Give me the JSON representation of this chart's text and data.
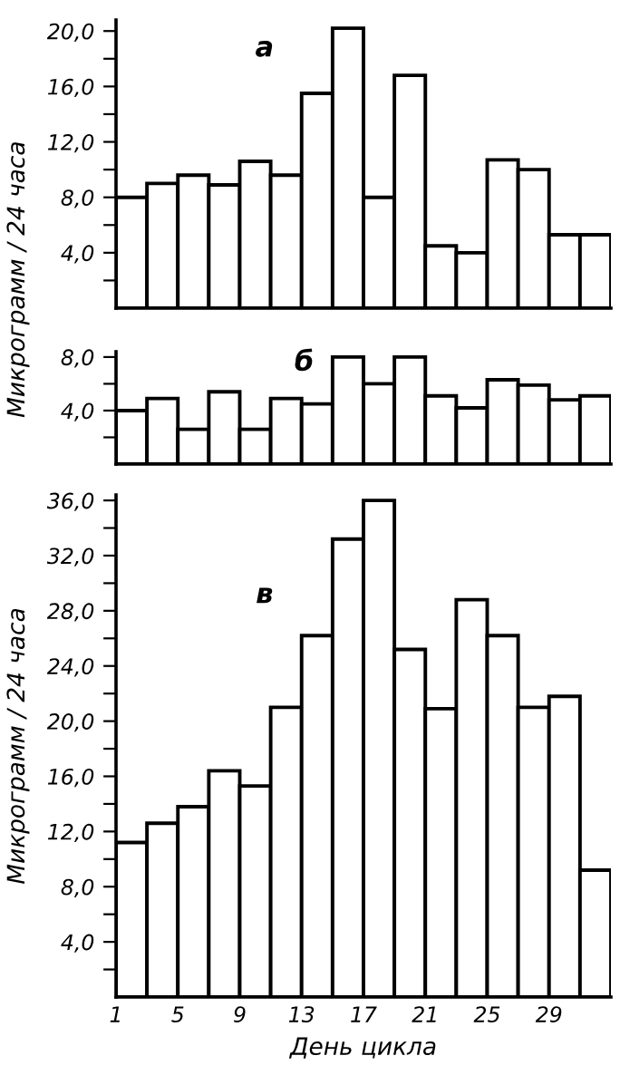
{
  "chart_data": [
    {
      "type": "histogram",
      "annotations": [
        "а"
      ],
      "ylabel": "Микрограмм / 24 часа",
      "tick_labels": "y",
      "xlim": [
        1,
        33
      ],
      "ylim": [
        0,
        20.8
      ],
      "bins": [
        1,
        3,
        5,
        7,
        9,
        11,
        13,
        15,
        17,
        19,
        21,
        23,
        25,
        27,
        29,
        31,
        33
      ],
      "values": [
        8.0,
        9.0,
        9.6,
        8.9,
        10.6,
        9.6,
        15.5,
        20.2,
        8.0,
        16.8,
        4.5,
        4.0,
        10.7,
        10.0,
        5.3,
        5.3
      ],
      "color": "#ffffff",
      "yticks": [
        {
          "value": 2,
          "label": null
        },
        {
          "value": 4,
          "label": "4,0"
        },
        {
          "value": 6,
          "label": null
        },
        {
          "value": 8,
          "label": "8,0"
        },
        {
          "value": 10,
          "label": null
        },
        {
          "value": 12,
          "label": "12,0"
        },
        {
          "value": 14,
          "label": null
        },
        {
          "value": 16,
          "label": "16,0"
        },
        {
          "value": 18,
          "label": null
        },
        {
          "value": 20,
          "label": "20,0"
        }
      ]
    },
    {
      "type": "histogram",
      "annotations": [
        "б"
      ],
      "tick_labels": "y",
      "xlim": [
        1,
        33
      ],
      "ylim": [
        0,
        8.4
      ],
      "bins": [
        1,
        3,
        5,
        7,
        9,
        11,
        13,
        15,
        17,
        19,
        21,
        23,
        25,
        27,
        29,
        31,
        33
      ],
      "values": [
        4.0,
        4.9,
        2.6,
        5.4,
        2.6,
        4.9,
        4.5,
        8.0,
        6.0,
        8.0,
        5.1,
        4.2,
        6.3,
        5.9,
        4.8,
        5.1
      ],
      "color": "#ffffff",
      "yticks": [
        {
          "value": 2,
          "label": null
        },
        {
          "value": 4,
          "label": "4,0"
        },
        {
          "value": 6,
          "label": null
        },
        {
          "value": 8,
          "label": "8,0"
        }
      ]
    },
    {
      "type": "histogram",
      "annotations": [
        "в"
      ],
      "ylabel": "Микрограмм / 24 часа",
      "xlabel": "День цикла",
      "xlim": [
        1,
        33
      ],
      "ylim": [
        0,
        36.4
      ],
      "bins": [
        1,
        3,
        5,
        7,
        9,
        11,
        13,
        15,
        17,
        19,
        21,
        23,
        25,
        27,
        29,
        31,
        33
      ],
      "values": [
        11.2,
        12.6,
        13.8,
        16.4,
        15.3,
        21.0,
        26.2,
        33.2,
        36.0,
        25.2,
        20.9,
        28.8,
        26.2,
        21.0,
        21.8,
        9.2
      ],
      "color": "#ffffff",
      "xticks": [
        1,
        5,
        9,
        13,
        17,
        21,
        25,
        29
      ],
      "yticks": [
        {
          "value": 2,
          "label": null
        },
        {
          "value": 4,
          "label": "4,0"
        },
        {
          "value": 6,
          "label": null
        },
        {
          "value": 8,
          "label": "8,0"
        },
        {
          "value": 10,
          "label": null
        },
        {
          "value": 12,
          "label": "12,0"
        },
        {
          "value": 14,
          "label": null
        },
        {
          "value": 16,
          "label": "16,0"
        },
        {
          "value": 18,
          "label": null
        },
        {
          "value": 20,
          "label": "20,0"
        },
        {
          "value": 22,
          "label": null
        },
        {
          "value": 24,
          "label": "24,0"
        },
        {
          "value": 26,
          "label": null
        },
        {
          "value": 28,
          "label": "28,0"
        },
        {
          "value": 30,
          "label": null
        },
        {
          "value": 32,
          "label": "32,0"
        },
        {
          "value": 34,
          "label": null
        },
        {
          "value": 36,
          "label": "36,0"
        }
      ]
    }
  ]
}
